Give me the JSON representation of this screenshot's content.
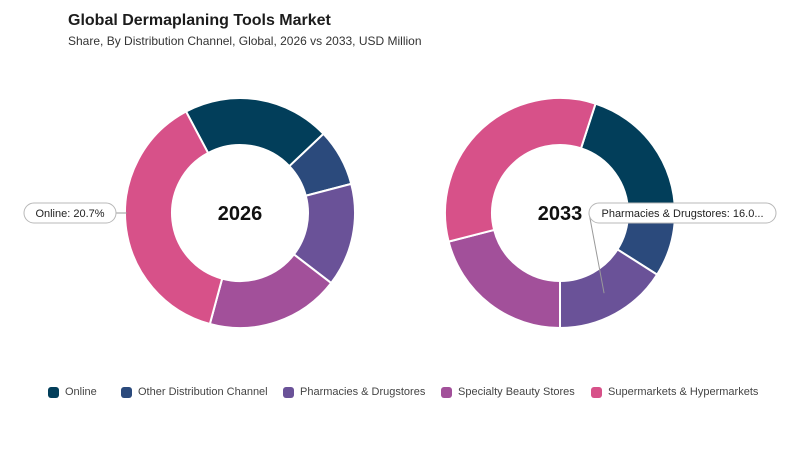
{
  "header": {
    "title": "Global Dermaplaning Tools Market",
    "subtitle": "Share, By Distribution Channel, Global, 2026 vs 2033, USD Million"
  },
  "chart_data": {
    "type": "pie",
    "variant": "donut",
    "categories": [
      "Online",
      "Other Distribution Channel",
      "Pharmacies & Drugstores",
      "Specialty Beauty Stores",
      "Supermarkets & Hypermarkets"
    ],
    "colors": [
      "#023e5a",
      "#2b4a7c",
      "#6a5298",
      "#a2509a",
      "#d75189"
    ],
    "series": [
      {
        "name": "2026",
        "values": [
          20.7,
          8.0,
          14.5,
          18.8,
          38.0
        ]
      },
      {
        "name": "2033",
        "values": [
          20.0,
          9.0,
          16.0,
          21.0,
          34.0
        ]
      }
    ],
    "callouts": [
      {
        "series": 0,
        "category": 0,
        "text": "Online: 20.7%"
      },
      {
        "series": 1,
        "category": 2,
        "text": "Pharmacies & Drugstores: 16.0..."
      }
    ],
    "legend_position": "bottom"
  }
}
